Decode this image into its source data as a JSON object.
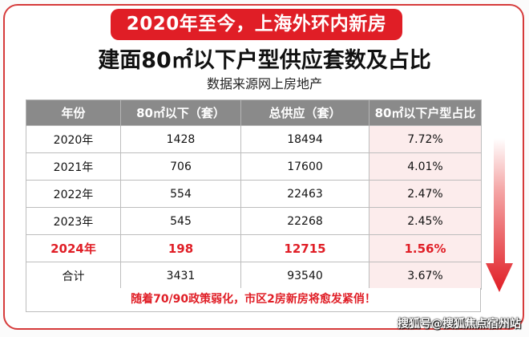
{
  "banner": {
    "text": "2020年至今，上海外环内新房"
  },
  "headline": "建面80㎡以下户型供应套数及占比",
  "source": "数据来源网上房地产",
  "table": {
    "headers": [
      "年份",
      "80㎡以下（套）",
      "总供应（套）",
      "80㎡以下户型占比"
    ],
    "rows": [
      {
        "year": "2020年",
        "small": "1428",
        "total": "18494",
        "ratio": "7.72%"
      },
      {
        "year": "2021年",
        "small": "706",
        "total": "17600",
        "ratio": "4.01%"
      },
      {
        "year": "2022年",
        "small": "554",
        "total": "22463",
        "ratio": "2.47%"
      },
      {
        "year": "2023年",
        "small": "545",
        "total": "22268",
        "ratio": "2.45%"
      },
      {
        "year": "2024年",
        "small": "198",
        "total": "12715",
        "ratio": "1.56%"
      },
      {
        "year": "合计",
        "small": "3431",
        "total": "93540",
        "ratio": "3.67%"
      }
    ],
    "highlight_row": "2024年"
  },
  "note": "随着70/90政策弱化，市区2房新房将愈发紧俏！",
  "watermark": "搜狐号@搜狐焦点宿州站",
  "colors": {
    "accent": "#e01e26",
    "header_bg": "#8a8a8a",
    "ratio_bg": "#fcecec"
  }
}
